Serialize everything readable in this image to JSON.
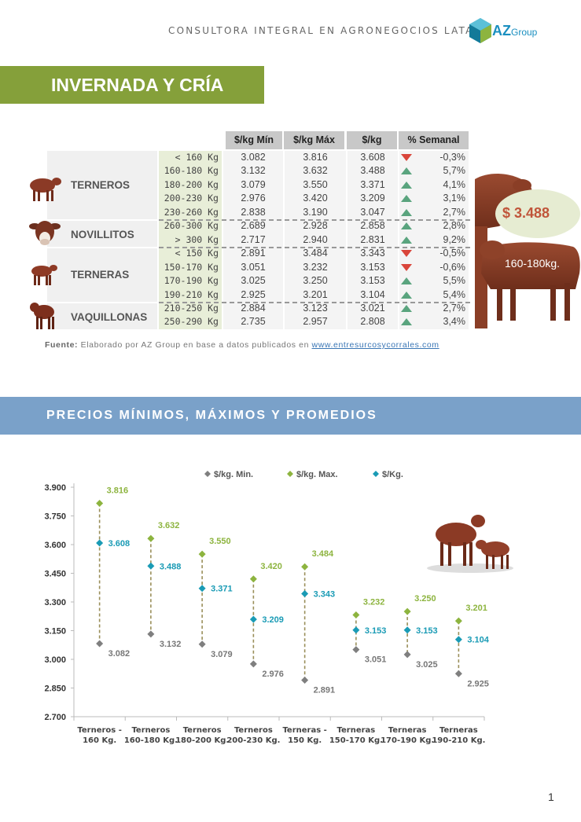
{
  "header": {
    "tagline": "CONSULTORA INTEGRAL EN AGRONEGOCIOS LATAM",
    "logo_text": "AZ",
    "logo_suffix": "Group"
  },
  "section_title": "INVERNADA Y CRÍA",
  "table": {
    "columns": [
      "$/kg Mín",
      "$/kg Máx",
      "$/kg",
      "% Semanal"
    ],
    "categories": [
      {
        "name": "TERNEROS",
        "icon": "calf-icon"
      },
      {
        "name": "NOVILLITOS",
        "icon": "steer-icon"
      },
      {
        "name": "TERNERAS",
        "icon": "heifer-calf-icon"
      },
      {
        "name": "VAQUILLONAS",
        "icon": "heifer-icon"
      }
    ],
    "rows": [
      {
        "range": "< 160 Kg",
        "min": "3.082",
        "max": "3.816",
        "avg": "3.608",
        "trend": "down",
        "change": "-0,3%"
      },
      {
        "range": "160-180 Kg",
        "min": "3.132",
        "max": "3.632",
        "avg": "3.488",
        "trend": "up",
        "change": "5,7%"
      },
      {
        "range": "180-200 Kg",
        "min": "3.079",
        "max": "3.550",
        "avg": "3.371",
        "trend": "up",
        "change": "4,1%"
      },
      {
        "range": "200-230 Kg",
        "min": "2.976",
        "max": "3.420",
        "avg": "3.209",
        "trend": "up",
        "change": "3,1%"
      },
      {
        "range": "230-260 Kg",
        "min": "2.838",
        "max": "3.190",
        "avg": "3.047",
        "trend": "up",
        "change": "2,7%"
      },
      {
        "range": "260-300 Kg",
        "min": "2.689",
        "max": "2.928",
        "avg": "2.858",
        "trend": "up",
        "change": "2,8%"
      },
      {
        "range": "> 300 Kg",
        "min": "2.717",
        "max": "2.940",
        "avg": "2.831",
        "trend": "up",
        "change": "9,2%"
      },
      {
        "range": "< 150 Kg",
        "min": "2.891",
        "max": "3.484",
        "avg": "3.343",
        "trend": "down",
        "change": "-0,5%"
      },
      {
        "range": "150-170 Kg",
        "min": "3.051",
        "max": "3.232",
        "avg": "3.153",
        "trend": "down",
        "change": "-0,6%"
      },
      {
        "range": "170-190 Kg",
        "min": "3.025",
        "max": "3.250",
        "avg": "3.153",
        "trend": "up",
        "change": "5,5%"
      },
      {
        "range": "190-210 Kg",
        "min": "2.925",
        "max": "3.201",
        "avg": "3.104",
        "trend": "up",
        "change": "5,4%"
      },
      {
        "range": "210-250 Kg",
        "min": "2.884",
        "max": "3.123",
        "avg": "3.021",
        "trend": "up",
        "change": "2,7%"
      },
      {
        "range": "250-290 Kg",
        "min": "2.735",
        "max": "2.957",
        "avg": "2.808",
        "trend": "up",
        "change": "3,4%"
      }
    ]
  },
  "highlight": {
    "price": "$  3.488",
    "weight": "160-180kg."
  },
  "source": {
    "label": "Fuente:",
    "text": " Elaborado por AZ Group en base a datos publicados en ",
    "link": "www.entresurcosycorrales.com"
  },
  "chart_section_title": "PRECIOS MÍNIMOS, MÁXIMOS Y PROMEDIOS",
  "colors": {
    "min": "#7f7f7f",
    "max": "#8db43f",
    "avg": "#1a9bb5",
    "connector": "#9a8f5a"
  },
  "chart_data": {
    "type": "scatter",
    "categories": [
      [
        "Terneros -",
        "160 Kg."
      ],
      [
        "Terneros",
        "160-180 Kg."
      ],
      [
        "Terneros",
        "180-200 Kg."
      ],
      [
        "Terneros",
        "200-230 Kg."
      ],
      [
        "Terneras -",
        "150 Kg."
      ],
      [
        "Terneras",
        "150-170 Kg."
      ],
      [
        "Terneras",
        "170-190 Kg."
      ],
      [
        "Terneras",
        "190-210 Kg."
      ]
    ],
    "series": [
      {
        "name": "$/kg. Min.",
        "key": "min",
        "values": [
          3082,
          3132,
          3079,
          2976,
          2891,
          3051,
          3025,
          2925
        ],
        "labels": [
          "3.082",
          "3.132",
          "3.079",
          "2.976",
          "2.891",
          "3.051",
          "3.025",
          "2.925"
        ]
      },
      {
        "name": "$/kg. Max.",
        "key": "max",
        "values": [
          3816,
          3632,
          3550,
          3420,
          3484,
          3232,
          3250,
          3201
        ],
        "labels": [
          "3.816",
          "3.632",
          "3.550",
          "3.420",
          "3.484",
          "3.232",
          "3.250",
          "3.201"
        ]
      },
      {
        "name": "$/Kg.",
        "key": "avg",
        "values": [
          3608,
          3488,
          3371,
          3209,
          3343,
          3153,
          3153,
          3104
        ],
        "labels": [
          "3.608",
          "3.488",
          "3.371",
          "3.209",
          "3.343",
          "3.153",
          "3.153",
          "3.104"
        ]
      }
    ],
    "ylim": [
      2700,
      3900
    ],
    "yticks": [
      2700,
      2850,
      3000,
      3150,
      3300,
      3450,
      3600,
      3750,
      3900
    ],
    "ytick_labels": [
      "2.700",
      "2.850",
      "3.000",
      "3.150",
      "3.300",
      "3.450",
      "3.600",
      "3.750",
      "3.900"
    ],
    "legend_position": "top",
    "grid": false
  },
  "page_number": "1"
}
